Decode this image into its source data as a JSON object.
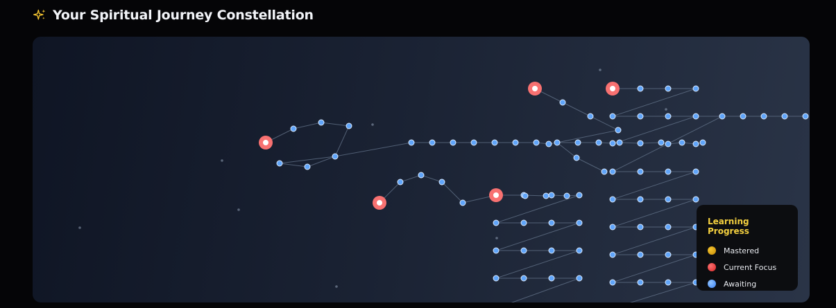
{
  "header": {
    "title": "Your Spiritual Journey Constellation",
    "icon": "sparkles-icon"
  },
  "legend": {
    "title": "Learning Progress",
    "items": [
      {
        "label": "Mastered",
        "status": "mastered",
        "color": "#e0a40f"
      },
      {
        "label": "Current Focus",
        "status": "current",
        "color": "#ef4444"
      },
      {
        "label": "Awaiting",
        "status": "awaiting",
        "color": "#60a5fa"
      }
    ]
  },
  "colors": {
    "current_node": "#f87171",
    "awaiting_node": "#60a5fa",
    "connection": "#64748b",
    "title_accent": "#f4d03f"
  }
}
